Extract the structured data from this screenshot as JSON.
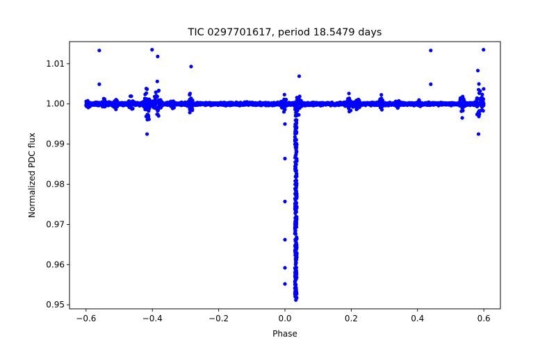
{
  "chart_data": {
    "type": "scatter",
    "title": "TIC 0297701617, period 18.5479 days",
    "xlabel": "Phase",
    "ylabel": "Normalized PDC flux",
    "xlim": [
      -0.65,
      0.65
    ],
    "ylim": [
      0.949,
      1.0155
    ],
    "xticks": [
      -0.6,
      -0.4,
      -0.2,
      0.0,
      0.2,
      0.4,
      0.6
    ],
    "xtick_labels": [
      "−0.6",
      "−0.4",
      "−0.2",
      "0.0",
      "0.2",
      "0.4",
      "0.6"
    ],
    "yticks": [
      0.95,
      0.96,
      0.97,
      0.98,
      0.99,
      1.0,
      1.01
    ],
    "ytick_labels": [
      "0.95",
      "0.96",
      "0.97",
      "0.98",
      "0.99",
      "1.00",
      "1.01"
    ],
    "grid": false,
    "legend": "none",
    "series": [
      {
        "name": "flux",
        "color": "#0000ff",
        "baseline": 1.0,
        "x_range": [
          -0.6,
          0.6
        ],
        "notable_points": [
          {
            "x": -0.56,
            "y": 1.0133
          },
          {
            "x": -0.56,
            "y": 1.0049
          },
          {
            "x": -0.401,
            "y": 1.0135
          },
          {
            "x": -0.384,
            "y": 1.0118
          },
          {
            "x": -0.283,
            "y": 1.0093
          },
          {
            "x": -0.416,
            "y": 0.9925
          },
          {
            "x": 0.0,
            "y": 0.9986
          },
          {
            "x": 0.0,
            "y": 0.995
          },
          {
            "x": 0.0,
            "y": 0.9864
          },
          {
            "x": 0.0,
            "y": 0.9757
          },
          {
            "x": 0.0,
            "y": 0.9662
          },
          {
            "x": 0.0,
            "y": 0.9592
          },
          {
            "x": 0.0,
            "y": 0.9552
          },
          {
            "x": 0.033,
            "y": 0.9512
          },
          {
            "x": 0.043,
            "y": 1.0069
          },
          {
            "x": 0.44,
            "y": 1.0133
          },
          {
            "x": 0.44,
            "y": 1.0049
          },
          {
            "x": 0.599,
            "y": 1.0135
          },
          {
            "x": 0.582,
            "y": 1.0083
          },
          {
            "x": 0.584,
            "y": 0.9925
          }
        ]
      }
    ]
  }
}
